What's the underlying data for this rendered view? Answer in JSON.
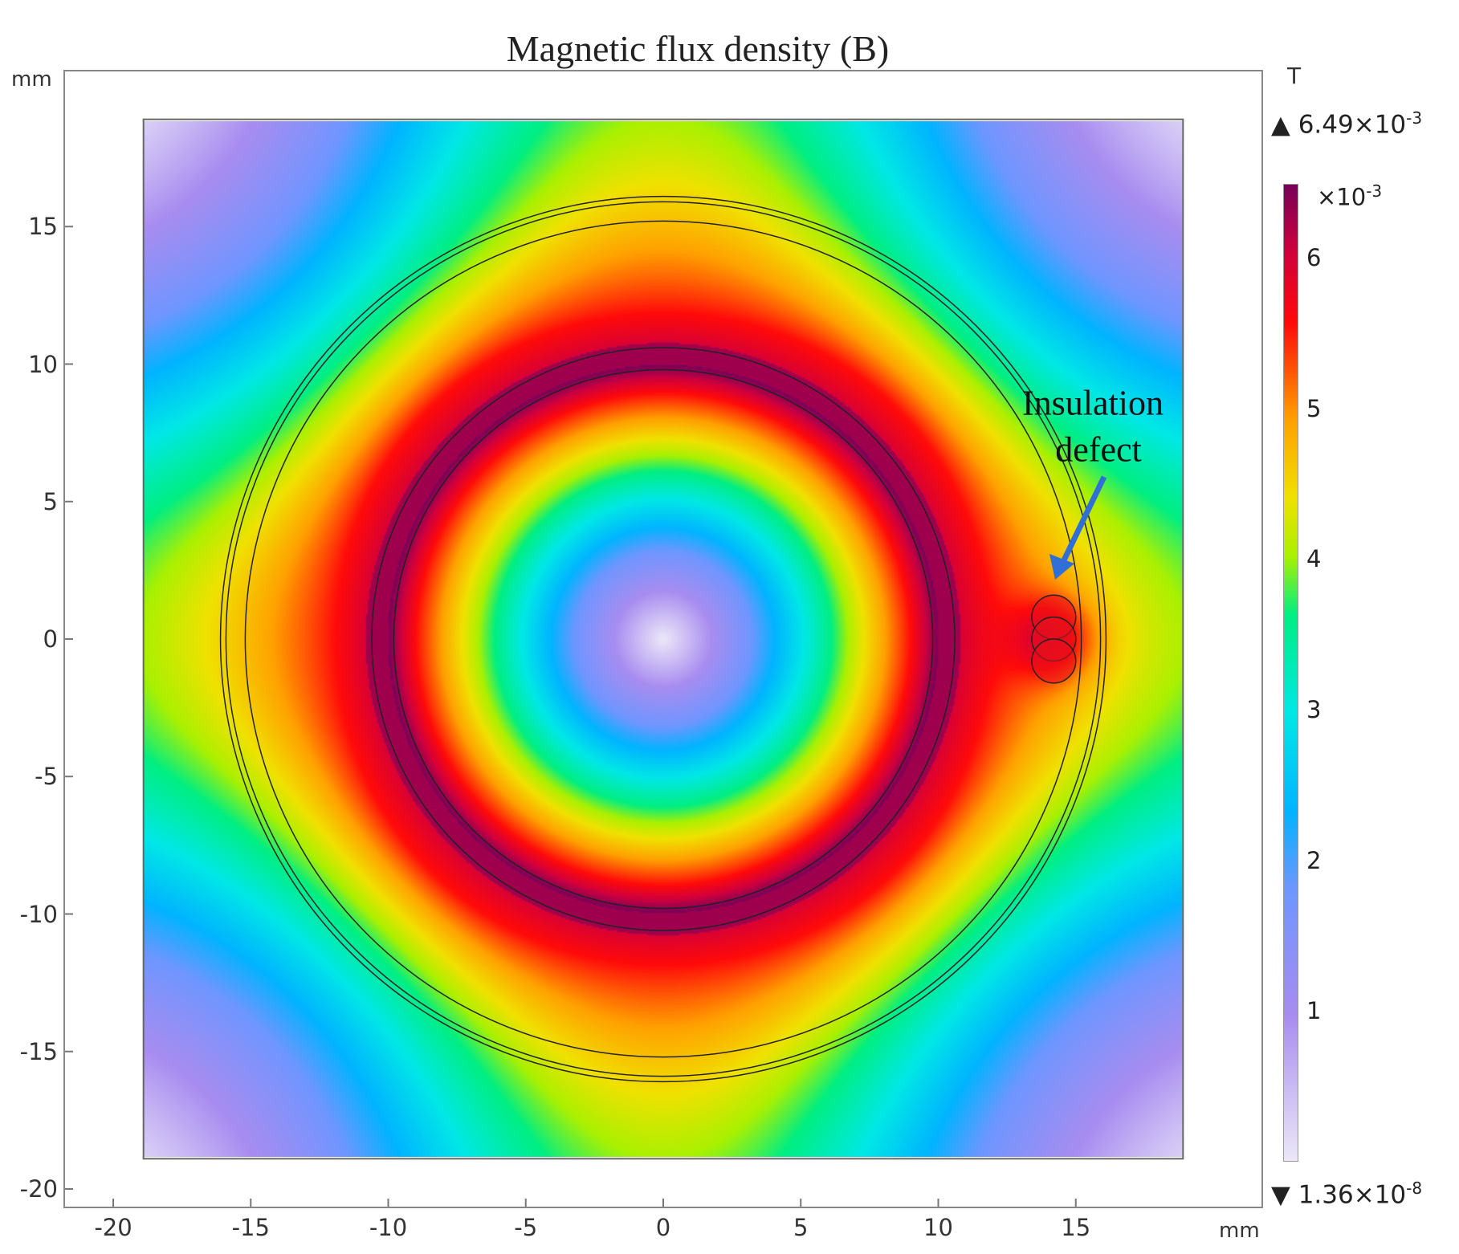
{
  "chart_data": {
    "type": "heatmap",
    "title": "Magnetic flux density (B)",
    "xlabel": "mm",
    "ylabel": "mm",
    "xlim": [
      -22,
      21.5
    ],
    "ylim": [
      -21.5,
      20.5
    ],
    "x_ticks": [
      "-20",
      "-15",
      "-10",
      "-5",
      "0",
      "5",
      "10",
      "15"
    ],
    "x_tick_values": [
      -20,
      -15,
      -10,
      -5,
      0,
      5,
      10,
      15
    ],
    "y_ticks": [
      "15",
      "10",
      "5",
      "0",
      "-5",
      "-10",
      "-15",
      "-20"
    ],
    "y_tick_values": [
      15,
      10,
      5,
      0,
      -5,
      -10,
      -15,
      -20
    ],
    "domain_extent_mm": [
      -18.9,
      18.9
    ],
    "colorbar": {
      "unit": "T",
      "max_label": "6.49×10",
      "max_exp": "-3",
      "min_label": "1.36×10",
      "min_exp": "-8",
      "scale_label": "×10",
      "scale_exp": "-3",
      "ticks": [
        "6",
        "5",
        "4",
        "3",
        "2",
        "1"
      ],
      "tick_values": [
        6,
        5,
        4,
        3,
        2,
        1
      ],
      "range": [
        1.36e-08,
        0.00649
      ]
    },
    "geometry_circles_mm": [
      9.8,
      10.6,
      15.2,
      15.9,
      16.1
    ],
    "defect": {
      "x": 14.2,
      "y_values": [
        0.8,
        0,
        -0.8
      ],
      "radius": 0.8
    },
    "annotation": {
      "line1": "Insulation",
      "line2": "defect"
    },
    "colors": {
      "arrow": "#2f6fd6"
    }
  }
}
